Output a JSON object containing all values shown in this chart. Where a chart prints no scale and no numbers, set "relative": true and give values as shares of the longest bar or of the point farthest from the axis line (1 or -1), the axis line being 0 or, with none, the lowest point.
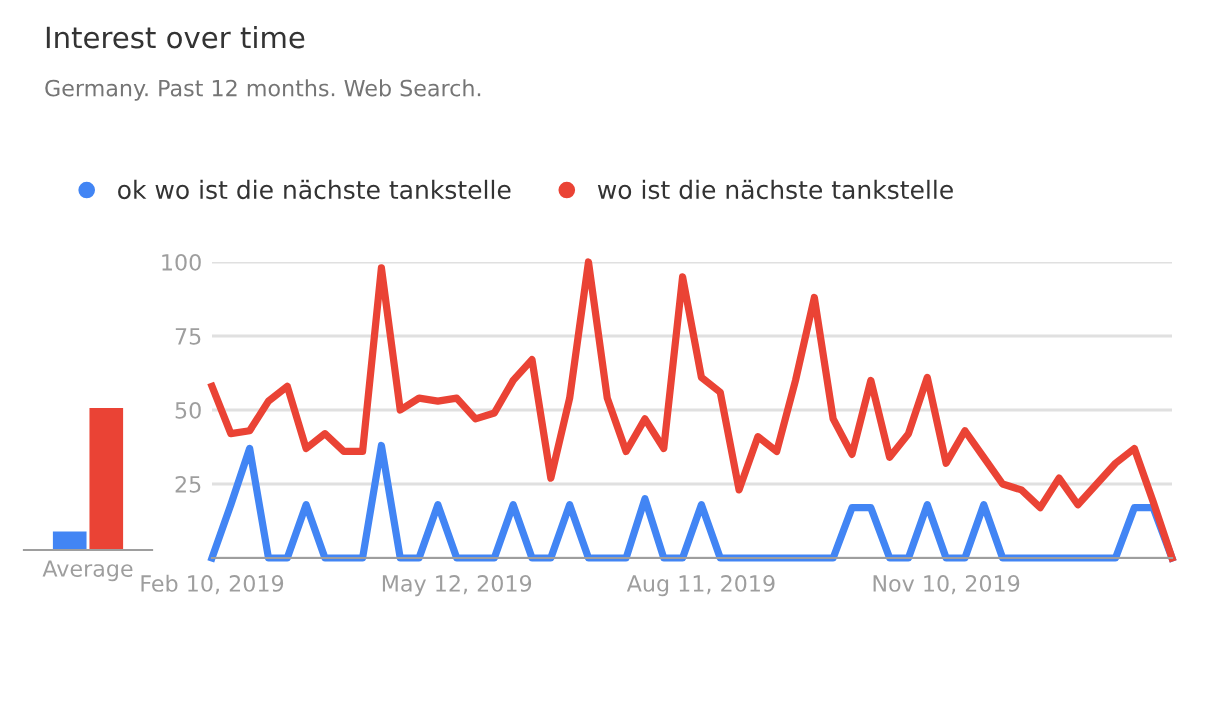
{
  "chart_data": [
    {
      "type": "bar",
      "relative": true,
      "categories": [
        "Average"
      ],
      "grid": false,
      "series": [
        {
          "color": "#4285f4",
          "values": [
            0.13
          ]
        },
        {
          "color": "#ea4335",
          "values": [
            1
          ]
        }
      ]
    },
    {
      "type": "line",
      "title": "Interest over time",
      "subtitle": "Germany. Past 12 months. Web Search.",
      "legend": "top left",
      "grid": "y",
      "marker": "none",
      "line_style": "solid",
      "x": [
        "2019-02-10",
        "2019-02-17",
        "2019-02-24",
        "2019-03-03",
        "2019-03-10",
        "2019-03-17",
        "2019-03-24",
        "2019-03-31",
        "2019-04-07",
        "2019-04-14",
        "2019-04-21",
        "2019-04-28",
        "2019-05-05",
        "2019-05-12",
        "2019-05-19",
        "2019-05-26",
        "2019-06-02",
        "2019-06-09",
        "2019-06-16",
        "2019-06-23",
        "2019-06-30",
        "2019-07-07",
        "2019-07-14",
        "2019-07-21",
        "2019-07-28",
        "2019-08-04",
        "2019-08-11",
        "2019-08-18",
        "2019-08-25",
        "2019-09-01",
        "2019-09-08",
        "2019-09-15",
        "2019-09-22",
        "2019-09-29",
        "2019-10-06",
        "2019-10-13",
        "2019-10-20",
        "2019-10-27",
        "2019-11-03",
        "2019-11-10",
        "2019-11-17",
        "2019-11-24",
        "2019-12-01",
        "2019-12-08",
        "2019-12-15",
        "2019-12-22",
        "2019-12-29",
        "2020-01-05",
        "2020-01-12",
        "2020-01-19",
        "2020-01-26",
        "2020-02-02"
      ],
      "xlim": [
        "2019-02-10",
        "2020-02-02"
      ],
      "xticks": [
        {
          "value": "2019-02-10",
          "label": "Feb 10, 2019"
        },
        {
          "value": "2019-05-12",
          "label": "May 12, 2019"
        },
        {
          "value": "2019-08-11",
          "label": "Aug 11, 2019"
        },
        {
          "value": "2019-11-10",
          "label": "Nov 10, 2019"
        }
      ],
      "ylim": [
        0,
        100
      ],
      "yticks": [
        {
          "value": 0,
          "label": null
        },
        25,
        50,
        75,
        100
      ],
      "series": [
        {
          "name": "ok wo ist die nächste tankstelle",
          "color": "#4285f4",
          "values": [
            0,
            18,
            37,
            0,
            0,
            18,
            0,
            0,
            0,
            38,
            0,
            0,
            18,
            0,
            0,
            0,
            18,
            0,
            0,
            18,
            0,
            0,
            0,
            20,
            0,
            0,
            18,
            0,
            0,
            0,
            0,
            0,
            0,
            0,
            17,
            17,
            0,
            0,
            18,
            0,
            0,
            18,
            0,
            0,
            0,
            0,
            0,
            0,
            0,
            17,
            17,
            0
          ]
        },
        {
          "name": "wo ist die nächste tankstelle",
          "color": "#ea4335",
          "values": [
            58,
            42,
            43,
            53,
            58,
            37,
            42,
            36,
            36,
            98,
            50,
            54,
            53,
            54,
            47,
            49,
            60,
            67,
            27,
            54,
            100,
            54,
            36,
            47,
            37,
            95,
            61,
            56,
            23,
            41,
            36,
            60,
            88,
            47,
            35,
            60,
            34,
            42,
            61,
            32,
            43,
            34,
            25,
            23,
            17,
            27,
            18,
            25,
            32,
            37,
            19,
            0
          ]
        }
      ]
    }
  ]
}
